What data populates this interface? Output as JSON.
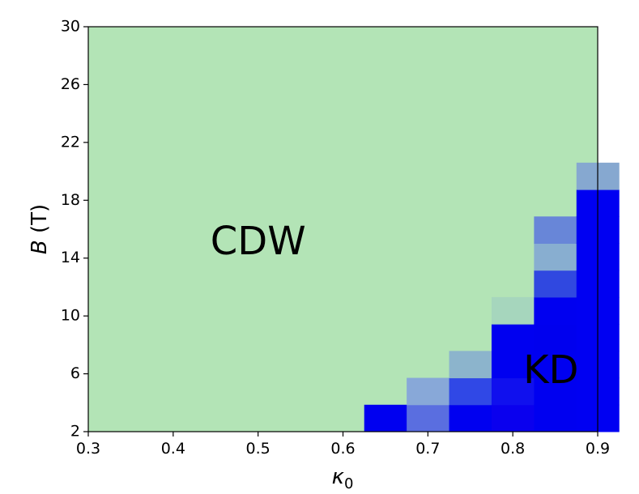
{
  "chart_data": {
    "type": "heatmap",
    "title": "",
    "xlabel": "κ",
    "xlabel_subscript": "0",
    "ylabel_italic": "B",
    "ylabel_rest": " (T)",
    "xlim": [
      0.3,
      0.9
    ],
    "ylim": [
      2,
      30
    ],
    "x_ticks": [
      "0.3",
      "0.4",
      "0.5",
      "0.6",
      "0.7",
      "0.8",
      "0.9"
    ],
    "y_ticks": [
      "2",
      "6",
      "10",
      "14",
      "18",
      "22",
      "26",
      "30"
    ],
    "grid": false,
    "legend": "none",
    "background_color": "#b3e4b6",
    "cell_width": 0.05,
    "cell_height": 1.86,
    "cells": [
      {
        "x": 0.625,
        "y": 2.0,
        "color": "#0000f0"
      },
      {
        "x": 0.675,
        "y": 2.0,
        "color": "#5a6ee0"
      },
      {
        "x": 0.675,
        "y": 3.86,
        "color": "#88a8d8"
      },
      {
        "x": 0.725,
        "y": 2.0,
        "color": "#0000f0"
      },
      {
        "x": 0.725,
        "y": 3.86,
        "color": "#3048e6"
      },
      {
        "x": 0.725,
        "y": 5.72,
        "color": "#8cb4cc"
      },
      {
        "x": 0.775,
        "y": 2.0,
        "color": "#0a00ee"
      },
      {
        "x": 0.775,
        "y": 3.86,
        "color": "#1010ee"
      },
      {
        "x": 0.775,
        "y": 5.72,
        "color": "#0000f0"
      },
      {
        "x": 0.775,
        "y": 7.58,
        "color": "#0000f0"
      },
      {
        "x": 0.775,
        "y": 9.44,
        "color": "#a6d6bd"
      },
      {
        "x": 0.825,
        "y": 2.0,
        "color": "#0000f0"
      },
      {
        "x": 0.825,
        "y": 3.86,
        "color": "#0000f0"
      },
      {
        "x": 0.825,
        "y": 5.72,
        "color": "#0000f0"
      },
      {
        "x": 0.825,
        "y": 7.58,
        "color": "#0000ee"
      },
      {
        "x": 0.825,
        "y": 9.44,
        "color": "#0000f0"
      },
      {
        "x": 0.825,
        "y": 11.3,
        "color": "#3048e0"
      },
      {
        "x": 0.825,
        "y": 13.16,
        "color": "#88aed0"
      },
      {
        "x": 0.825,
        "y": 15.02,
        "color": "#6886d8"
      },
      {
        "x": 0.875,
        "y": 2.0,
        "color": "#0000f2"
      },
      {
        "x": 0.875,
        "y": 3.86,
        "color": "#0000f2"
      },
      {
        "x": 0.875,
        "y": 5.72,
        "color": "#0000f2"
      },
      {
        "x": 0.875,
        "y": 7.58,
        "color": "#0000f2"
      },
      {
        "x": 0.875,
        "y": 9.44,
        "color": "#0000f2"
      },
      {
        "x": 0.875,
        "y": 11.3,
        "color": "#0000f2"
      },
      {
        "x": 0.875,
        "y": 13.16,
        "color": "#0000f2"
      },
      {
        "x": 0.875,
        "y": 15.02,
        "color": "#0000f2"
      },
      {
        "x": 0.875,
        "y": 16.88,
        "color": "#0000f2"
      },
      {
        "x": 0.875,
        "y": 18.74,
        "color": "#86a8d0"
      }
    ],
    "annotations": [
      {
        "text": "CDW",
        "x": 0.5,
        "y": 15.0
      },
      {
        "text": "KD",
        "x": 0.845,
        "y": 6.1
      }
    ]
  }
}
